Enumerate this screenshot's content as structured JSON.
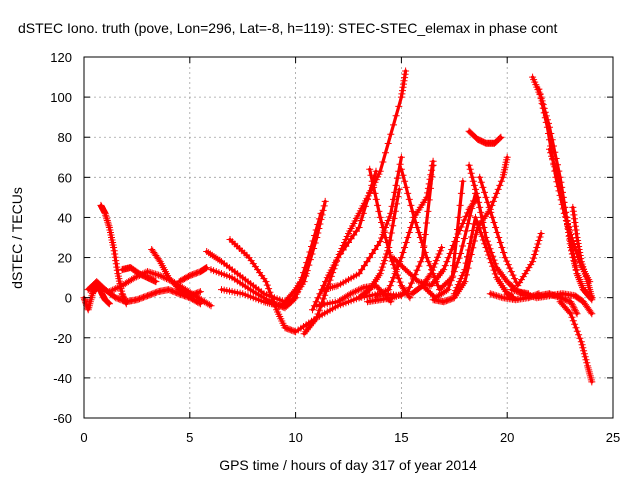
{
  "chart_data": {
    "type": "scatter",
    "title": "dSTEC Iono. truth (pove, Lon=296, Lat=-8, h=119): STEC-STEC_elemax in phase cont",
    "xlabel": "GPS time / hours of day 317 of year 2014",
    "ylabel": "dSTEC  / TECUs",
    "xlim": [
      0,
      25
    ],
    "ylim": [
      -60,
      120
    ],
    "xticks": [
      0,
      5,
      10,
      15,
      20,
      25
    ],
    "yticks": [
      -60,
      -40,
      -20,
      0,
      20,
      40,
      60,
      80,
      100,
      120
    ],
    "grid": true,
    "marker": "+",
    "color": "#ff0000",
    "series": [
      {
        "x": [
          0.0,
          0.2,
          0.4,
          0.6,
          0.8,
          1.0,
          1.2
        ],
        "y": [
          0,
          -6,
          2,
          6,
          3,
          -1,
          -3
        ]
      },
      {
        "x": [
          0.2,
          0.6,
          1.0,
          1.5,
          2.0,
          2.5,
          3.0,
          3.5,
          4.0,
          4.5,
          5.0,
          5.5
        ],
        "y": [
          4,
          8,
          4,
          0,
          -2,
          -1,
          1,
          3,
          4,
          2,
          0,
          -3
        ]
      },
      {
        "x": [
          0.8,
          1.0,
          1.2,
          1.4,
          1.6,
          1.8,
          2.0
        ],
        "y": [
          46,
          42,
          35,
          25,
          12,
          2,
          -3
        ]
      },
      {
        "x": [
          1.2,
          1.8,
          2.4,
          3.0,
          3.6,
          4.2,
          4.8,
          5.4,
          6.0
        ],
        "y": [
          3,
          6,
          10,
          13,
          11,
          8,
          4,
          0,
          -4
        ]
      },
      {
        "x": [
          1.8,
          2.2,
          2.6,
          3.0,
          3.4
        ],
        "y": [
          14,
          15,
          12,
          10,
          8
        ]
      },
      {
        "x": [
          3.2,
          3.6,
          4.0,
          4.5,
          5.0,
          5.5
        ],
        "y": [
          24,
          18,
          10,
          4,
          1,
          3
        ]
      },
      {
        "x": [
          4.5,
          5.0,
          5.5,
          5.8
        ],
        "y": [
          8,
          11,
          13,
          15
        ]
      },
      {
        "x": [
          5.8,
          6.5,
          7.5,
          8.5,
          9.5,
          10.0,
          10.5
        ],
        "y": [
          23,
          18,
          10,
          2,
          -2,
          4,
          12
        ]
      },
      {
        "x": [
          6.0,
          7.0,
          8.0,
          9.0,
          9.5,
          10.0,
          10.6,
          11.2
        ],
        "y": [
          14,
          10,
          3,
          -3,
          -5,
          0,
          20,
          42
        ]
      },
      {
        "x": [
          6.5,
          7.5,
          8.5,
          9.2,
          9.8,
          10.4,
          11.0,
          11.4
        ],
        "y": [
          4,
          2,
          -2,
          -4,
          -2,
          8,
          30,
          48
        ]
      },
      {
        "x": [
          6.9,
          7.8,
          8.6,
          9.1,
          9.5,
          10.0,
          11.0,
          12.0,
          13.0,
          14.0,
          15.0
        ],
        "y": [
          29,
          20,
          8,
          -6,
          -15,
          -17,
          -10,
          -4,
          0,
          2,
          1
        ]
      },
      {
        "x": [
          10.4,
          11.0,
          11.5,
          12.0,
          12.5,
          13.0,
          13.5,
          14.0,
          15.0,
          15.2
        ],
        "y": [
          -18,
          -10,
          5,
          20,
          32,
          42,
          52,
          63,
          100,
          113
        ]
      },
      {
        "x": [
          10.8,
          11.5,
          12.0,
          13.0,
          13.8
        ],
        "y": [
          -6,
          10,
          20,
          35,
          63
        ]
      },
      {
        "x": [
          11.0,
          12.0,
          12.6,
          13.2,
          13.8,
          14.5
        ],
        "y": [
          -4,
          -2,
          2,
          5,
          6,
          -2
        ]
      },
      {
        "x": [
          11.3,
          12.0,
          13.0,
          14.0,
          14.5,
          15.0
        ],
        "y": [
          4,
          6,
          12,
          28,
          42,
          70
        ]
      },
      {
        "x": [
          13.0,
          13.5,
          14.0,
          14.4,
          14.9
        ],
        "y": [
          0,
          4,
          12,
          25,
          54
        ]
      },
      {
        "x": [
          13.4,
          14.0,
          14.6,
          15.3,
          16.0,
          16.5
        ],
        "y": [
          -2,
          -1,
          0,
          3,
          20,
          66
        ]
      },
      {
        "x": [
          13.8,
          14.4,
          15.0,
          15.6,
          16.2,
          16.5
        ],
        "y": [
          1,
          4,
          20,
          40,
          50,
          68
        ]
      },
      {
        "x": [
          13.5,
          14.0,
          14.5,
          15.0,
          15.4
        ],
        "y": [
          64,
          40,
          20,
          6,
          0
        ]
      },
      {
        "x": [
          14.6,
          15.2,
          15.8,
          16.4,
          17.0,
          17.6,
          18.2,
          18.6
        ],
        "y": [
          20,
          14,
          8,
          6,
          14,
          30,
          44,
          50
        ]
      },
      {
        "x": [
          15.0,
          15.6,
          16.2,
          16.8,
          17.4,
          17.9
        ],
        "y": [
          64,
          40,
          20,
          4,
          10,
          58
        ]
      },
      {
        "x": [
          16.0,
          16.6,
          17.2,
          17.8,
          18.5
        ],
        "y": [
          6,
          0,
          4,
          22,
          52
        ]
      },
      {
        "x": [
          15.5,
          16.0,
          16.4,
          16.9
        ],
        "y": [
          2,
          6,
          12,
          25
        ]
      },
      {
        "x": [
          16.5,
          17.0,
          17.5,
          18.0,
          18.6,
          19.2,
          19.8,
          20.0
        ],
        "y": [
          -1,
          -2,
          0,
          8,
          35,
          44,
          60,
          70
        ]
      },
      {
        "x": [
          17.5,
          18.0,
          18.5,
          19.0,
          19.5,
          20.0,
          20.3
        ],
        "y": [
          2,
          14,
          40,
          25,
          10,
          2,
          0
        ]
      },
      {
        "x": [
          18.2,
          18.6,
          19.0,
          19.5,
          20.0,
          20.5,
          21.0
        ],
        "y": [
          66,
          50,
          30,
          15,
          8,
          3,
          2
        ]
      },
      {
        "x": [
          18.2,
          18.6,
          19.0,
          19.4,
          19.7
        ],
        "y": [
          83,
          79,
          77,
          77,
          80
        ]
      },
      {
        "x": [
          18.7,
          19.3,
          19.9,
          20.5,
          21.2,
          21.6
        ],
        "y": [
          60,
          40,
          20,
          6,
          18,
          32
        ]
      },
      {
        "x": [
          19.2,
          19.8,
          20.4,
          21.0,
          21.5
        ],
        "y": [
          2,
          0,
          -1,
          0,
          2
        ]
      },
      {
        "x": [
          20.2,
          20.8,
          21.4,
          22.0,
          22.6,
          23.2,
          23.6,
          24.0
        ],
        "y": [
          4,
          2,
          0,
          1,
          2,
          1,
          -2,
          -8
        ]
      },
      {
        "x": [
          21.2,
          21.6,
          22.0,
          22.5,
          22.8,
          23.0,
          23.3,
          23.6,
          24.0
        ],
        "y": [
          110,
          100,
          85,
          60,
          40,
          25,
          12,
          4,
          -1
        ]
      },
      {
        "x": [
          21.5,
          21.9,
          22.3,
          22.7,
          23.1,
          23.5,
          23.9
        ],
        "y": [
          104,
          85,
          60,
          42,
          28,
          16,
          8
        ]
      },
      {
        "x": [
          22.0,
          22.4,
          22.8,
          23.0,
          23.3,
          23.6,
          24.0
        ],
        "y": [
          74,
          60,
          40,
          28,
          12,
          4,
          0
        ]
      },
      {
        "x": [
          23.1,
          23.3,
          23.5,
          23.8,
          24.0
        ],
        "y": [
          45,
          30,
          18,
          8,
          0
        ]
      },
      {
        "x": [
          21.5,
          22.0,
          22.5,
          23.0,
          23.3
        ],
        "y": [
          1,
          2,
          0,
          -2,
          -8
        ]
      },
      {
        "x": [
          22.5,
          23.0,
          23.5,
          23.8,
          24.0
        ],
        "y": [
          -2,
          -8,
          -22,
          -34,
          -42
        ]
      }
    ]
  }
}
